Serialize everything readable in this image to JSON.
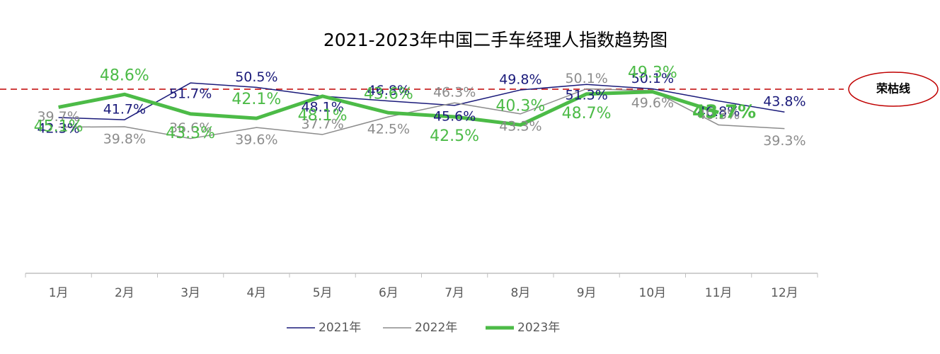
{
  "chart_data": {
    "type": "line",
    "title": "2021-2023年中国二手车经理人指数趋势图",
    "categories": [
      "1月",
      "2月",
      "3月",
      "4月",
      "5月",
      "6月",
      "7月",
      "8月",
      "9月",
      "10月",
      "11月",
      "12月"
    ],
    "ylim": [
      0,
      55
    ],
    "reference_line": {
      "value": 50,
      "label": "荣枯线",
      "color": "#c00000"
    },
    "legend": "bottom",
    "series": [
      {
        "name": "2021年",
        "color": "#1a1a7a",
        "width": 1.5,
        "values": [
          42.3,
          41.7,
          51.7,
          50.5,
          48.1,
          46.8,
          45.6,
          49.8,
          51.3,
          50.1,
          46.8,
          43.8
        ],
        "value_labels": [
          "42.3%",
          "41.7%",
          "51.7%",
          "50.5%",
          "48.1%",
          "46.8%",
          "45.6%",
          "49.8%",
          "51.3%",
          "50.1%",
          "46.8%",
          "43.8%"
        ]
      },
      {
        "name": "2022年",
        "color": "#8c8c8c",
        "width": 1.5,
        "values": [
          39.7,
          39.8,
          36.6,
          39.6,
          37.7,
          42.5,
          46.3,
          43.3,
          50.1,
          49.6,
          40.3,
          39.3
        ],
        "value_labels": [
          "39.7%",
          "39.8%",
          "36.6%",
          "39.6%",
          "37.7%",
          "42.5%",
          "46.3%",
          "43.3%",
          "50.1%",
          "49.6%",
          "40.3%",
          "39.3%"
        ]
      },
      {
        "name": "2023年",
        "color": "#4cbb47",
        "width": 5,
        "values": [
          45.1,
          48.6,
          43.3,
          42.1,
          48.1,
          43.6,
          42.5,
          40.3,
          48.7,
          49.3,
          43.7,
          null
        ],
        "value_labels": [
          "45.1%",
          "48.6%",
          "43.3%",
          "42.1%",
          "48.1%",
          "43.6%",
          "42.5%",
          "40.3%",
          "48.7%",
          "49.3%",
          "43.7%",
          null
        ]
      }
    ]
  }
}
